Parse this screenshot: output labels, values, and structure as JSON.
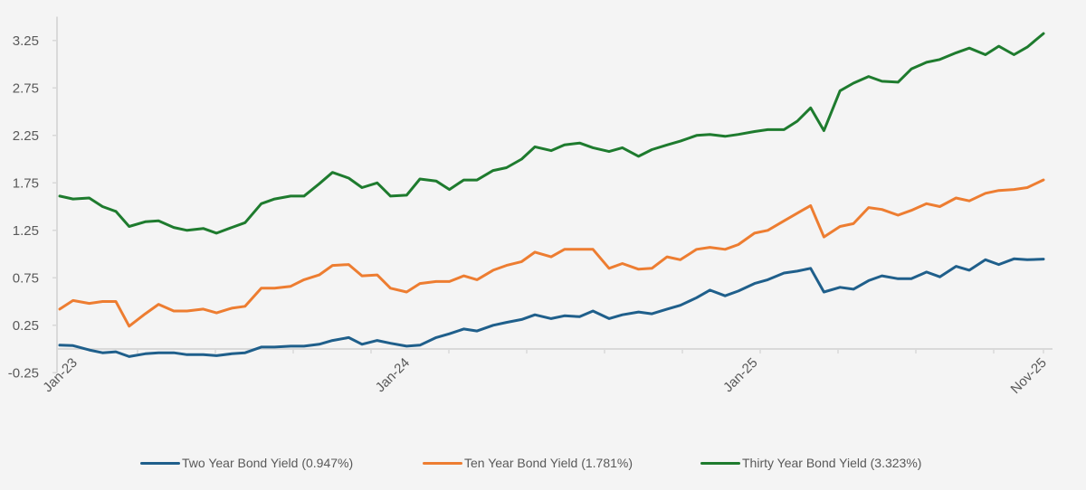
{
  "chart_data": {
    "type": "line",
    "title": "",
    "xlabel": "",
    "ylabel": "",
    "ylim": [
      -0.25,
      3.5
    ],
    "yticks": [
      "3.25",
      "2.75",
      "2.25",
      "1.75",
      "1.25",
      "0.75",
      "0.25",
      "-0.25"
    ],
    "ytick_values": [
      3.25,
      2.75,
      2.25,
      1.75,
      1.25,
      0.75,
      0.25,
      -0.25
    ],
    "xtick_labels": [
      {
        "label": "Jan-23",
        "date": "2023-01-01"
      },
      {
        "label": "Jan-24",
        "date": "2024-01-01"
      },
      {
        "label": "Jan-25",
        "date": "2025-01-01"
      },
      {
        "label": "Nov-25",
        "date": "2025-11-01"
      }
    ],
    "grid": false,
    "legend_position": "bottom",
    "x": [
      "2023-01-01",
      "2023-01-15",
      "2023-02-01",
      "2023-02-15",
      "2023-03-01",
      "2023-03-15",
      "2023-04-01",
      "2023-04-15",
      "2023-05-01",
      "2023-05-15",
      "2023-06-01",
      "2023-06-15",
      "2023-07-01",
      "2023-07-15",
      "2023-08-01",
      "2023-08-15",
      "2023-09-01",
      "2023-09-15",
      "2023-10-01",
      "2023-10-15",
      "2023-11-01",
      "2023-11-15",
      "2023-12-01",
      "2023-12-15",
      "2024-01-01",
      "2024-01-15",
      "2024-02-01",
      "2024-02-15",
      "2024-03-01",
      "2024-03-15",
      "2024-04-01",
      "2024-04-15",
      "2024-05-01",
      "2024-05-15",
      "2024-06-01",
      "2024-06-15",
      "2024-07-01",
      "2024-07-15",
      "2024-08-01",
      "2024-08-15",
      "2024-09-01",
      "2024-09-15",
      "2024-10-01",
      "2024-10-15",
      "2024-11-01",
      "2024-11-15",
      "2024-12-01",
      "2024-12-15",
      "2025-01-01",
      "2025-01-15",
      "2025-02-01",
      "2025-02-15",
      "2025-03-01",
      "2025-03-15",
      "2025-04-01",
      "2025-04-15",
      "2025-05-01",
      "2025-05-15",
      "2025-06-01",
      "2025-06-15",
      "2025-07-01",
      "2025-07-15",
      "2025-08-01",
      "2025-08-15",
      "2025-09-01",
      "2025-09-15",
      "2025-10-01",
      "2025-10-15",
      "2025-11-01"
    ],
    "series": [
      {
        "name": "Two Year Bond Yield (0.947%)",
        "color": "#1f5f8b",
        "values": [
          0.04,
          0.035,
          -0.01,
          -0.04,
          -0.03,
          -0.08,
          -0.05,
          -0.04,
          -0.04,
          -0.06,
          -0.06,
          -0.07,
          -0.05,
          -0.04,
          0.02,
          0.02,
          0.03,
          0.03,
          0.05,
          0.09,
          0.12,
          0.05,
          0.09,
          0.06,
          0.03,
          0.04,
          0.12,
          0.16,
          0.21,
          0.19,
          0.25,
          0.28,
          0.31,
          0.36,
          0.32,
          0.35,
          0.34,
          0.4,
          0.32,
          0.36,
          0.39,
          0.37,
          0.42,
          0.46,
          0.54,
          0.62,
          0.56,
          0.61,
          0.69,
          0.73,
          0.8,
          0.82,
          0.85,
          0.6,
          0.65,
          0.63,
          0.72,
          0.77,
          0.74,
          0.74,
          0.81,
          0.76,
          0.87,
          0.83,
          0.94,
          0.89,
          0.95,
          0.94,
          0.947
        ]
      },
      {
        "name": "Ten Year Bond Yield (1.781%)",
        "color": "#ed7d31",
        "values": [
          0.42,
          0.51,
          0.48,
          0.5,
          0.5,
          0.24,
          0.37,
          0.47,
          0.4,
          0.4,
          0.42,
          0.38,
          0.43,
          0.45,
          0.64,
          0.64,
          0.66,
          0.73,
          0.78,
          0.88,
          0.89,
          0.77,
          0.78,
          0.64,
          0.6,
          0.69,
          0.71,
          0.71,
          0.77,
          0.73,
          0.83,
          0.88,
          0.92,
          1.02,
          0.97,
          1.05,
          1.05,
          1.05,
          0.85,
          0.9,
          0.84,
          0.85,
          0.97,
          0.94,
          1.05,
          1.07,
          1.05,
          1.1,
          1.22,
          1.25,
          1.35,
          1.43,
          1.51,
          1.18,
          1.29,
          1.32,
          1.49,
          1.47,
          1.41,
          1.46,
          1.53,
          1.5,
          1.59,
          1.56,
          1.64,
          1.67,
          1.68,
          1.7,
          1.781
        ]
      },
      {
        "name": "Thirty Year Bond Yield (3.323%)",
        "color": "#1e7b2e",
        "values": [
          1.61,
          1.58,
          1.59,
          1.5,
          1.45,
          1.29,
          1.34,
          1.35,
          1.28,
          1.25,
          1.27,
          1.22,
          1.28,
          1.33,
          1.53,
          1.58,
          1.61,
          1.61,
          1.74,
          1.86,
          1.8,
          1.7,
          1.75,
          1.61,
          1.62,
          1.79,
          1.77,
          1.68,
          1.78,
          1.78,
          1.88,
          1.91,
          2.0,
          2.13,
          2.09,
          2.15,
          2.17,
          2.12,
          2.08,
          2.12,
          2.03,
          2.1,
          2.15,
          2.19,
          2.25,
          2.26,
          2.24,
          2.26,
          2.29,
          2.31,
          2.31,
          2.4,
          2.54,
          2.3,
          2.72,
          2.8,
          2.87,
          2.82,
          2.81,
          2.95,
          3.02,
          3.05,
          3.12,
          3.17,
          3.1,
          3.19,
          3.1,
          3.18,
          3.323
        ]
      }
    ]
  },
  "axis_color": "#d9d9d9",
  "text_color": "#595959"
}
